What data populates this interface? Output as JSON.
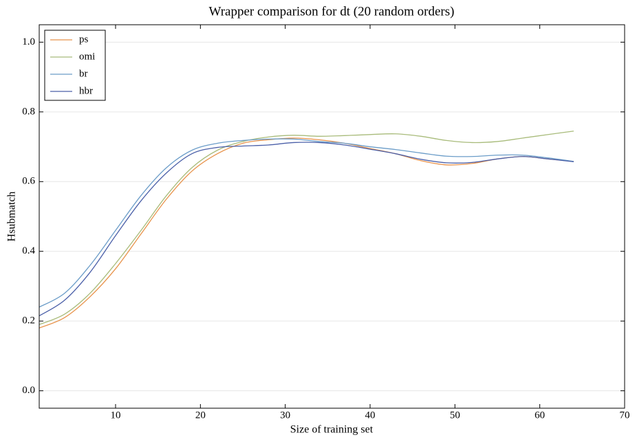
{
  "chart_data": {
    "type": "line",
    "title": "Wrapper comparison for dt (20 random orders)",
    "xlabel": "Size of training set",
    "ylabel": "Hsubmatch",
    "x": [
      1,
      4,
      7,
      10,
      13,
      16,
      19,
      22,
      25,
      28,
      31,
      34,
      37,
      40,
      43,
      46,
      49,
      52,
      55,
      58,
      61,
      64
    ],
    "series": [
      {
        "name": "ps",
        "color": "#e8924a",
        "values": [
          0.18,
          0.21,
          0.27,
          0.35,
          0.45,
          0.55,
          0.63,
          0.68,
          0.71,
          0.72,
          0.725,
          0.72,
          0.71,
          0.695,
          0.68,
          0.66,
          0.648,
          0.652,
          0.665,
          0.672,
          0.665,
          0.658
        ]
      },
      {
        "name": "omi",
        "color": "#a8bb7a",
        "values": [
          0.19,
          0.22,
          0.28,
          0.365,
          0.46,
          0.56,
          0.64,
          0.69,
          0.715,
          0.728,
          0.733,
          0.73,
          0.732,
          0.735,
          0.737,
          0.73,
          0.718,
          0.712,
          0.715,
          0.725,
          0.735,
          0.745
        ]
      },
      {
        "name": "br",
        "color": "#6a9cc8",
        "values": [
          0.24,
          0.28,
          0.36,
          0.46,
          0.56,
          0.64,
          0.69,
          0.71,
          0.718,
          0.722,
          0.722,
          0.715,
          0.71,
          0.7,
          0.692,
          0.682,
          0.673,
          0.672,
          0.676,
          0.676,
          0.668,
          0.658
        ]
      },
      {
        "name": "hbr",
        "color": "#4a5fa8",
        "values": [
          0.215,
          0.26,
          0.34,
          0.445,
          0.545,
          0.625,
          0.68,
          0.698,
          0.702,
          0.705,
          0.712,
          0.712,
          0.705,
          0.693,
          0.68,
          0.664,
          0.654,
          0.655,
          0.665,
          0.672,
          0.665,
          0.657
        ]
      }
    ],
    "xlim": [
      1,
      70
    ],
    "xticks": [
      10,
      20,
      30,
      40,
      50,
      60,
      70
    ],
    "ylim": [
      -0.05,
      1.05
    ],
    "yticks": [
      {
        "value": 0,
        "label": "0.0"
      },
      0.2,
      0.4,
      0.6,
      0.8,
      {
        "value": 1,
        "label": "1.0"
      }
    ],
    "grid": true,
    "legend": "upper left"
  }
}
